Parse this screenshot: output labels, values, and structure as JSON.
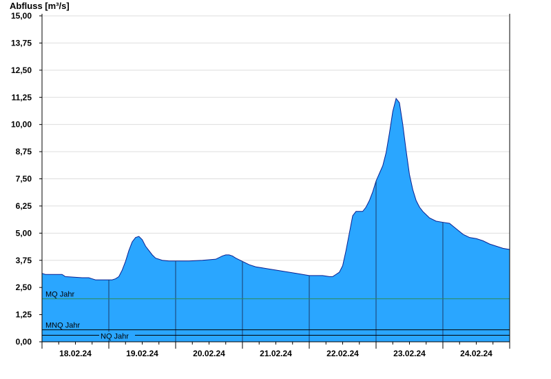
{
  "chart_data": {
    "type": "area",
    "ylabel": "Abfluss [m³/s]",
    "xlabel": "",
    "title": "",
    "ylim": [
      0,
      15
    ],
    "xlim": [
      0,
      7
    ],
    "y_ticks": [
      {
        "value": 0,
        "label": "0,00"
      },
      {
        "value": 1.25,
        "label": "1,25"
      },
      {
        "value": 2.5,
        "label": "2,50"
      },
      {
        "value": 3.75,
        "label": "3,75"
      },
      {
        "value": 5,
        "label": "5,00"
      },
      {
        "value": 6.25,
        "label": "6,25"
      },
      {
        "value": 7.5,
        "label": "7,50"
      },
      {
        "value": 8.75,
        "label": "8,75"
      },
      {
        "value": 10,
        "label": "10,00"
      },
      {
        "value": 11.25,
        "label": "11,25"
      },
      {
        "value": 12.5,
        "label": "12,50"
      },
      {
        "value": 13.75,
        "label": "13,75"
      },
      {
        "value": 15,
        "label": "15,00"
      }
    ],
    "x_ticks": [
      {
        "value": 0.5,
        "label": "18.02.24"
      },
      {
        "value": 1.5,
        "label": "19.02.24"
      },
      {
        "value": 2.5,
        "label": "20.02.24"
      },
      {
        "value": 3.5,
        "label": "21.02.24"
      },
      {
        "value": 4.5,
        "label": "22.02.24"
      },
      {
        "value": 5.5,
        "label": "23.02.24"
      },
      {
        "value": 6.5,
        "label": "24.02.24"
      }
    ],
    "day_boundaries": [
      1,
      2,
      3,
      4,
      5,
      6
    ],
    "grid": true,
    "colors": {
      "area": "#2aa6ff",
      "line": "#0a1f8f",
      "mq": "#2e8b57",
      "low": "#000000",
      "grid": "#dddddd"
    },
    "reference_lines": [
      {
        "name": "MQ Jahr",
        "value": 1.98
      },
      {
        "name": "MNQ Jahr",
        "value": 0.55
      },
      {
        "name": "NQ Jahr",
        "value": 0.3
      }
    ],
    "series": [
      {
        "x": [
          0,
          0.05,
          0.3,
          0.35,
          0.6,
          0.7,
          0.75,
          0.8,
          1.0,
          1.05,
          1.1,
          1.15,
          1.2,
          1.25,
          1.3,
          1.35,
          1.4,
          1.45,
          1.5,
          1.55,
          1.6,
          1.65,
          1.7,
          1.8,
          1.9,
          1.95,
          2.0,
          2.2,
          2.4,
          2.6,
          2.7,
          2.75,
          2.8,
          2.85,
          2.9,
          3.0,
          3.1,
          3.2,
          3.4,
          3.6,
          3.8,
          3.9,
          4.0,
          4.1,
          4.2,
          4.3,
          4.35,
          4.4,
          4.45,
          4.5,
          4.55,
          4.6,
          4.65,
          4.7,
          4.75,
          4.8,
          4.85,
          4.9,
          4.95,
          5.0,
          5.05,
          5.1,
          5.15,
          5.2,
          5.25,
          5.3,
          5.35,
          5.4,
          5.45,
          5.5,
          5.55,
          5.6,
          5.65,
          5.7,
          5.75,
          5.8,
          5.9,
          6.0,
          6.1,
          6.2,
          6.3,
          6.4,
          6.5,
          6.6,
          6.7,
          6.8,
          6.9,
          7.0
        ],
        "values": [
          3.15,
          3.1,
          3.1,
          3.0,
          2.95,
          2.95,
          2.9,
          2.85,
          2.85,
          2.85,
          2.9,
          3.0,
          3.3,
          3.7,
          4.2,
          4.6,
          4.8,
          4.85,
          4.7,
          4.4,
          4.2,
          4.0,
          3.85,
          3.75,
          3.72,
          3.72,
          3.72,
          3.72,
          3.75,
          3.8,
          3.95,
          4.0,
          4.0,
          3.95,
          3.85,
          3.7,
          3.55,
          3.45,
          3.35,
          3.25,
          3.15,
          3.1,
          3.05,
          3.05,
          3.05,
          3.0,
          3.0,
          3.1,
          3.2,
          3.5,
          4.2,
          5.0,
          5.8,
          6.0,
          6.0,
          6.0,
          6.2,
          6.5,
          6.9,
          7.4,
          7.75,
          8.1,
          8.7,
          9.6,
          10.6,
          11.2,
          11.0,
          10.0,
          8.8,
          7.7,
          7.0,
          6.5,
          6.2,
          6.0,
          5.85,
          5.7,
          5.55,
          5.5,
          5.45,
          5.2,
          4.95,
          4.8,
          4.75,
          4.65,
          4.5,
          4.4,
          4.3,
          4.25
        ]
      }
    ]
  }
}
